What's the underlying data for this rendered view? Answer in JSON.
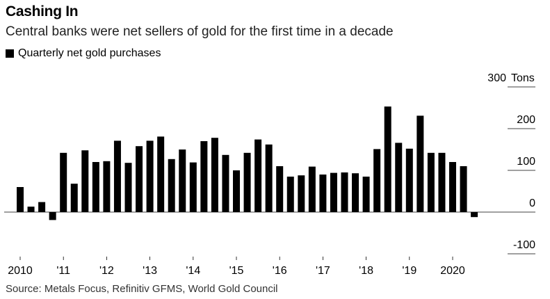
{
  "title": "Cashing In",
  "subtitle": "Central banks were net sellers of gold for the first time in a decade",
  "source": "Source: Metals Focus, Refinitiv GFMS, World Gold Council",
  "chart_data": {
    "type": "bar",
    "title": "Cashing In",
    "subtitle": "Central banks were net sellers of gold for the first time in a decade",
    "legend": [
      {
        "label": "Quarterly net gold purchases",
        "color": "#000000"
      }
    ],
    "legend_position": "top-left",
    "ylabel": "",
    "y_unit": "Tons",
    "ylim": [
      -100,
      300
    ],
    "y_ticks": [
      {
        "value": 300,
        "label": "300"
      },
      {
        "value": 200,
        "label": "200"
      },
      {
        "value": 100,
        "label": "100"
      },
      {
        "value": 0,
        "label": "0"
      },
      {
        "value": -100,
        "label": "-100"
      }
    ],
    "x_ticks": [
      {
        "index": 0,
        "label": "2010"
      },
      {
        "index": 4,
        "label": "'11"
      },
      {
        "index": 8,
        "label": "'12"
      },
      {
        "index": 12,
        "label": "'13"
      },
      {
        "index": 16,
        "label": "'14"
      },
      {
        "index": 20,
        "label": "'15"
      },
      {
        "index": 24,
        "label": "'16"
      },
      {
        "index": 28,
        "label": "'17"
      },
      {
        "index": 32,
        "label": "'18"
      },
      {
        "index": 36,
        "label": "'19"
      },
      {
        "index": 40,
        "label": "2020"
      }
    ],
    "grid": true,
    "categories": [
      "2010 Q1",
      "2010 Q2",
      "2010 Q3",
      "2010 Q4",
      "2011 Q1",
      "2011 Q2",
      "2011 Q3",
      "2011 Q4",
      "2012 Q1",
      "2012 Q2",
      "2012 Q3",
      "2012 Q4",
      "2013 Q1",
      "2013 Q2",
      "2013 Q3",
      "2013 Q4",
      "2014 Q1",
      "2014 Q2",
      "2014 Q3",
      "2014 Q4",
      "2015 Q1",
      "2015 Q2",
      "2015 Q3",
      "2015 Q4",
      "2016 Q1",
      "2016 Q2",
      "2016 Q3",
      "2016 Q4",
      "2017 Q1",
      "2017 Q2",
      "2017 Q3",
      "2017 Q4",
      "2018 Q1",
      "2018 Q2",
      "2018 Q3",
      "2018 Q4",
      "2019 Q1",
      "2019 Q2",
      "2019 Q3",
      "2019 Q4",
      "2020 Q1",
      "2020 Q2",
      "2020 Q3"
    ],
    "values": [
      60,
      13,
      24,
      -19,
      142,
      68,
      148,
      120,
      122,
      171,
      118,
      158,
      171,
      181,
      127,
      150,
      119,
      170,
      178,
      137,
      100,
      142,
      174,
      162,
      110,
      85,
      88,
      109,
      90,
      94,
      95,
      93,
      85,
      151,
      253,
      166,
      152,
      231,
      142,
      142,
      120,
      110,
      -12
    ]
  }
}
